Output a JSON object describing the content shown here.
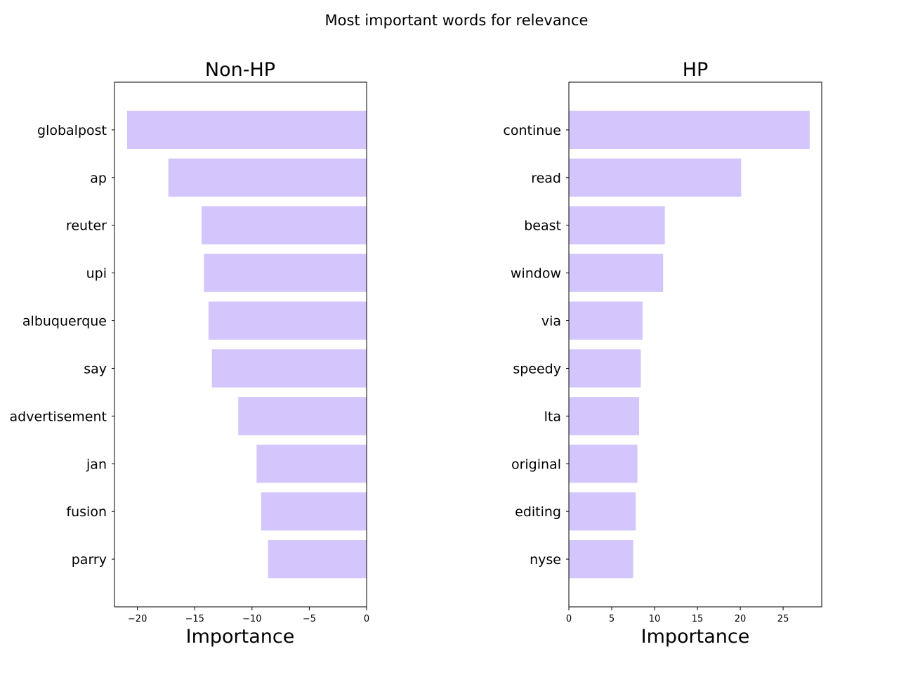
{
  "suptitle": "Most important words for relevance",
  "chart_data": [
    {
      "type": "bar",
      "orientation": "horizontal",
      "title": "Non-HP",
      "xlabel": "Importance",
      "ylabel": "",
      "xlim": [
        -22,
        0
      ],
      "xticks": [
        -20,
        -15,
        -10,
        -5,
        0
      ],
      "xtick_labels": [
        "−20",
        "−15",
        "−10",
        "−5",
        "0"
      ],
      "categories": [
        "globalpost",
        "ap",
        "reuter",
        "upi",
        "albuquerque",
        "say",
        "advertisement",
        "jan",
        "fusion",
        "parry"
      ],
      "values": [
        -20.9,
        -17.3,
        -14.4,
        -14.2,
        -13.8,
        -13.5,
        -11.2,
        -9.6,
        -9.2,
        -8.6
      ],
      "bar_color": "#d4c6fd",
      "grid": false,
      "legend": "none"
    },
    {
      "type": "bar",
      "orientation": "horizontal",
      "title": "HP",
      "xlabel": "Importance",
      "ylabel": "",
      "xlim": [
        0,
        29.5
      ],
      "xticks": [
        0,
        5,
        10,
        15,
        20,
        25
      ],
      "xtick_labels": [
        "0",
        "5",
        "10",
        "15",
        "20",
        "25"
      ],
      "categories": [
        "continue",
        "read",
        "beast",
        "window",
        "via",
        "speedy",
        "lta",
        "original",
        "editing",
        "nyse"
      ],
      "values": [
        28.1,
        20.1,
        11.2,
        11.0,
        8.6,
        8.4,
        8.2,
        8.0,
        7.8,
        7.5
      ],
      "bar_color": "#d4c6fd",
      "grid": false,
      "legend": "none"
    }
  ]
}
